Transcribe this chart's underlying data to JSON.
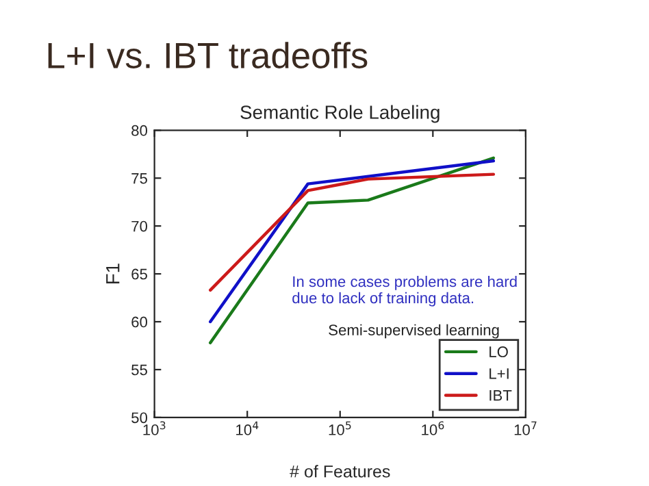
{
  "chart_data": {
    "type": "line",
    "title": "L+I vs. IBT tradeoffs",
    "subtitle": "Semantic Role Labeling",
    "xlabel": "# of Features",
    "ylabel": "F1",
    "series": [
      {
        "name": "LO",
        "color": "#1a7a1a",
        "x": [
          4000,
          45000,
          200000,
          4500000
        ],
        "values": [
          57.8,
          72.4,
          72.7,
          77.1
        ]
      },
      {
        "name": "L+I",
        "color": "#1010c8",
        "x": [
          4000,
          45000,
          4500000
        ],
        "values": [
          60.0,
          74.4,
          76.8
        ]
      },
      {
        "name": "IBT",
        "color": "#cc1a1a",
        "x": [
          4000,
          45000,
          200000,
          4500000
        ],
        "values": [
          63.3,
          73.7,
          74.9,
          75.4
        ]
      }
    ],
    "log": "x",
    "xlim": [
      1000,
      10000000
    ],
    "ylim": [
      50,
      80
    ],
    "xticks": [
      {
        "value": 1000,
        "label": "10$^{3}$"
      },
      {
        "value": 10000,
        "label": "10$^{4}$"
      },
      {
        "value": 100000,
        "label": "10$^{5}$"
      },
      {
        "value": 1000000,
        "label": "10$^{6}$"
      },
      {
        "value": 10000000,
        "label": "10$^{7}$"
      }
    ],
    "yticks": [
      50,
      55,
      60,
      65,
      70,
      75,
      80
    ],
    "annotations": [
      "In some cases problems are hard\ndue to lack of training data.",
      "Semi-supervised learning"
    ],
    "grid": false,
    "legend": "bottom right",
    "marker": "none",
    "line_style": "solid"
  }
}
